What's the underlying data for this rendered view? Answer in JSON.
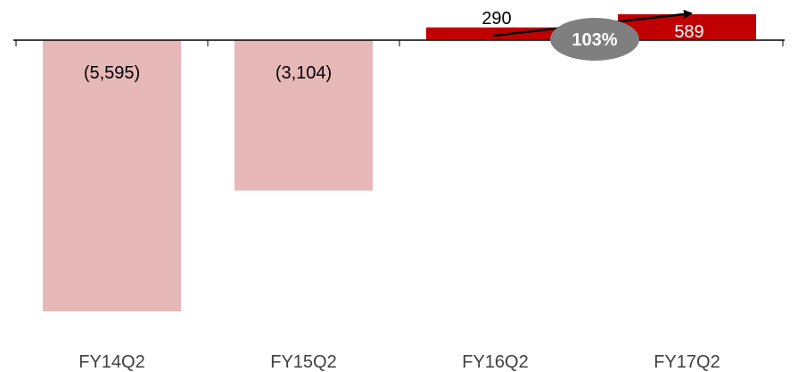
{
  "chart_data": {
    "type": "bar",
    "categories": [
      "FY14Q2",
      "FY15Q2",
      "FY16Q2",
      "FY17Q2"
    ],
    "values": [
      -5595,
      -3104,
      290,
      589
    ],
    "data_labels": [
      "(5,595)",
      "(3,104)",
      "290",
      "589"
    ],
    "bar_colors": [
      "#e6b8b7",
      "#e6b8b7",
      "#c00000",
      "#c00000"
    ],
    "label_colors": [
      "#000000",
      "#000000",
      "#000000",
      "#ffffff"
    ],
    "title": "",
    "xlabel": "",
    "ylabel": "",
    "ylim": [
      -5595,
      590
    ],
    "grid": false,
    "annotation": {
      "text": "103%",
      "from": "FY16Q2",
      "to": "FY17Q2",
      "badge_color": "#7f7f7f"
    }
  }
}
